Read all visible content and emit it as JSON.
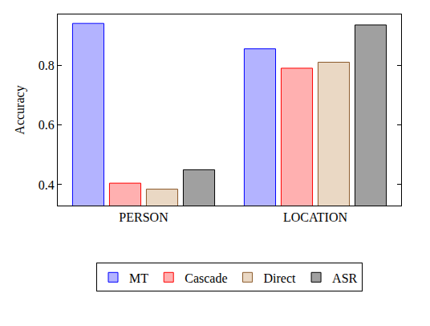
{
  "chart_data": {
    "type": "bar",
    "y_label": "Accuracy",
    "categories": [
      "PERSON",
      "LOCATION"
    ],
    "series": [
      {
        "name": "MT",
        "color": "#b3b3ff",
        "values": [
          0.94,
          0.855
        ]
      },
      {
        "name": "Cascade",
        "color": "#ffb0b0",
        "values": [
          0.405,
          0.79
        ]
      },
      {
        "name": "Direct",
        "color": "#ead8c4",
        "values": [
          0.385,
          0.81
        ]
      },
      {
        "name": "ASR",
        "color": "#a0a0a0",
        "values": [
          0.45,
          0.935
        ]
      }
    ],
    "ylim": [
      0.33,
      0.97
    ],
    "yticks": [
      0.4,
      0.6,
      0.8
    ],
    "grid": false,
    "legend": "bottom"
  }
}
